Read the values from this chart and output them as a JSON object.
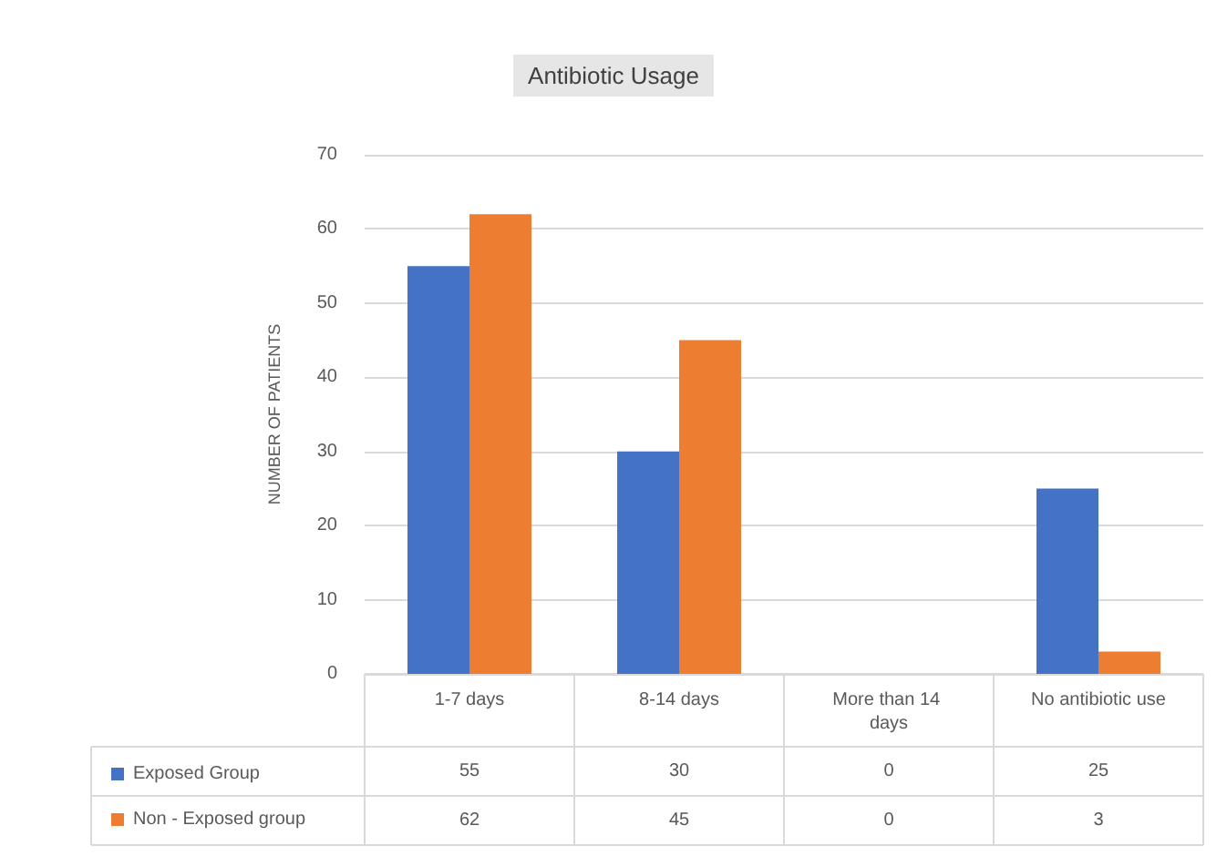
{
  "chart_data": {
    "type": "bar",
    "title": "Antibiotic Usage",
    "ylabel": "NUMBER OF PATIENTS",
    "categories": [
      "1-7 days",
      "8-14 days",
      "More than 14 days",
      "No antibiotic use"
    ],
    "series": [
      {
        "name": "Exposed Group",
        "color": "#4472c4",
        "values": [
          55,
          30,
          0,
          25
        ]
      },
      {
        "name": "Non - Exposed group",
        "color": "#ed7d31",
        "values": [
          62,
          45,
          0,
          3
        ]
      }
    ],
    "ylim": [
      0,
      70
    ],
    "yticks": [
      0,
      10,
      20,
      30,
      40,
      50,
      60,
      70
    ],
    "grid": "y",
    "legend": "bottom",
    "data_labels": true
  }
}
